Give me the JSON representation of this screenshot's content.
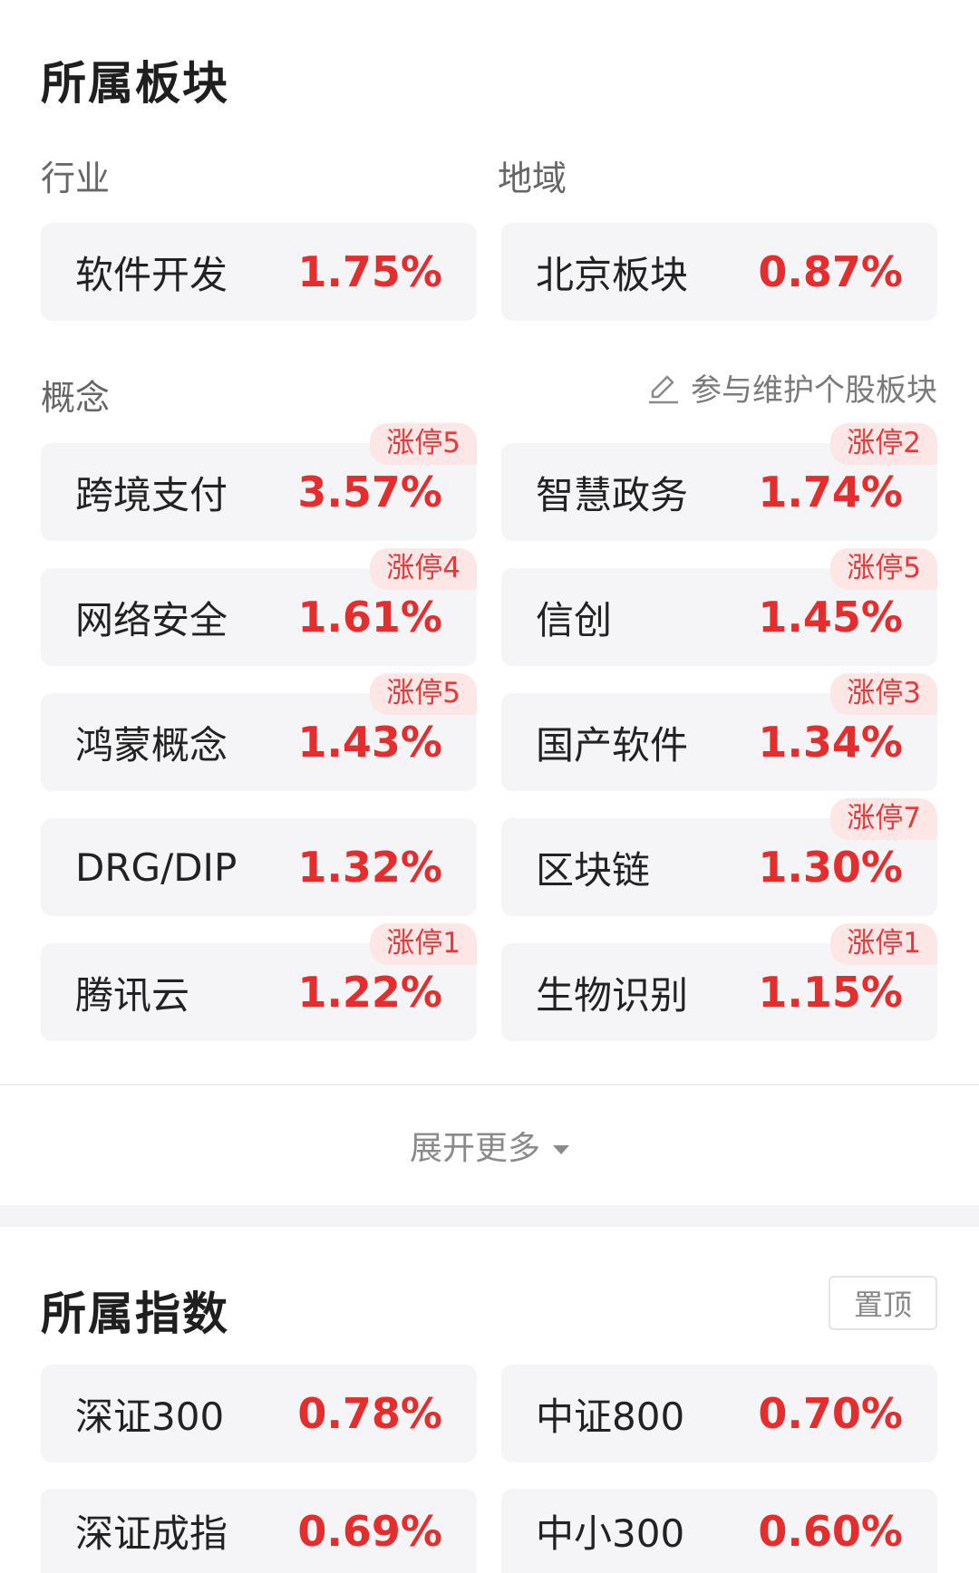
{
  "sector_section": {
    "title": "所属板块",
    "industry_label": "行业",
    "region_label": "地域",
    "industry": {
      "name": "软件开发",
      "pct": "1.75%"
    },
    "region": {
      "name": "北京板块",
      "pct": "0.87%"
    },
    "concept_label": "概念",
    "maintain_link": "参与维护个股板块",
    "concepts": [
      {
        "name": "跨境支付",
        "pct": "3.57%",
        "badge": "涨停5"
      },
      {
        "name": "智慧政务",
        "pct": "1.74%",
        "badge": "涨停2"
      },
      {
        "name": "网络安全",
        "pct": "1.61%",
        "badge": "涨停4"
      },
      {
        "name": "信创",
        "pct": "1.45%",
        "badge": "涨停5"
      },
      {
        "name": "鸿蒙概念",
        "pct": "1.43%",
        "badge": "涨停5"
      },
      {
        "name": "国产软件",
        "pct": "1.34%",
        "badge": "涨停3"
      },
      {
        "name": "DRG/DIP",
        "pct": "1.32%",
        "badge": ""
      },
      {
        "name": "区块链",
        "pct": "1.30%",
        "badge": "涨停7"
      },
      {
        "name": "腾讯云",
        "pct": "1.22%",
        "badge": "涨停1"
      },
      {
        "name": "生物识别",
        "pct": "1.15%",
        "badge": "涨停1"
      }
    ],
    "expand_label": "展开更多"
  },
  "index_section": {
    "title": "所属指数",
    "pin_label": "置顶",
    "indices": [
      {
        "name": "深证300",
        "pct": "0.78%"
      },
      {
        "name": "中证800",
        "pct": "0.70%"
      },
      {
        "name": "深证成指",
        "pct": "0.69%"
      },
      {
        "name": "中小300",
        "pct": "0.60%"
      }
    ]
  },
  "colors": {
    "up": "#e62d2d",
    "badge_bg": "#fde6e6",
    "card_bg": "#f5f5f7"
  }
}
